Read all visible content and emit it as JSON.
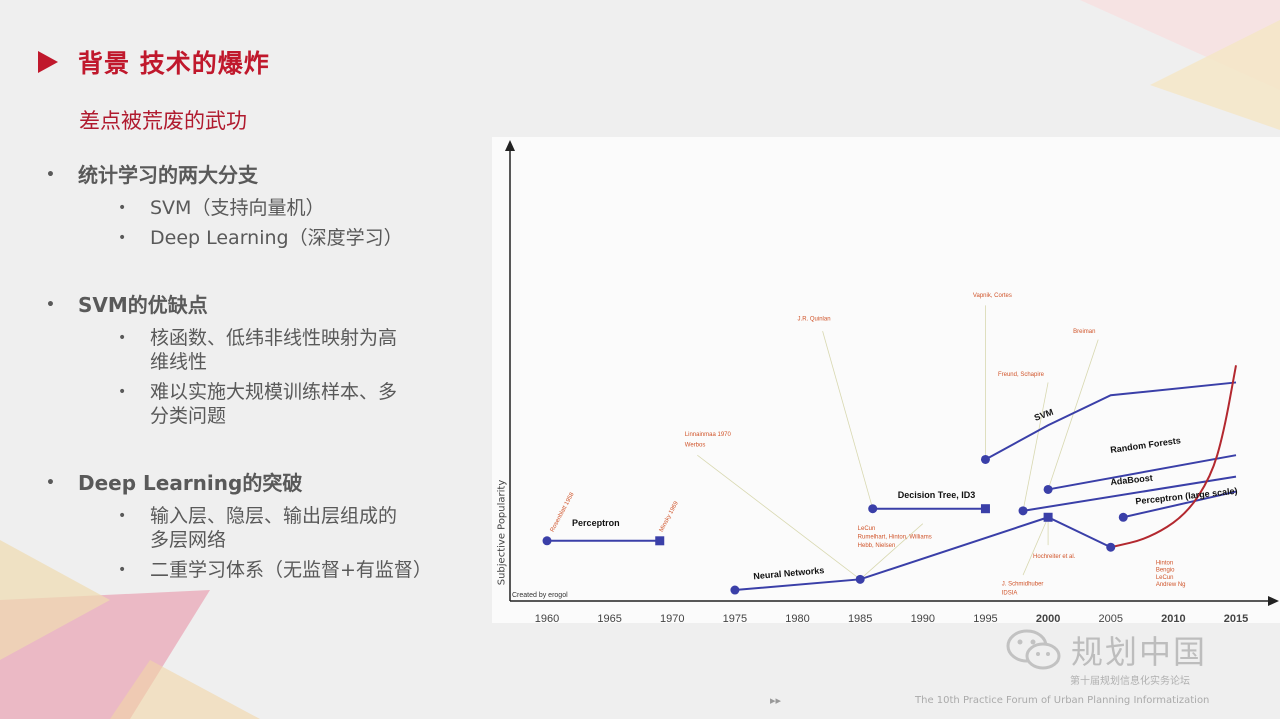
{
  "title": "背景    技术的爆炸",
  "subtitle": "差点被荒废的武功",
  "sections": [
    {
      "heading": "统计学习的两大分支",
      "items": [
        "SVM（支持向量机）",
        "Deep Learning（深度学习）"
      ]
    },
    {
      "heading": "SVM的优缺点",
      "items": [
        "核函数、低纬非线性映射为高维线性",
        "难以实施大规模训练样本、多分类问题"
      ]
    },
    {
      "heading": "Deep Learning的突破",
      "items": [
        "输入层、隐层、输出层组成的多层网络",
        "二重学习体系（无监督+有监督）"
      ]
    }
  ],
  "bullet_glyph": "•",
  "chart_data": {
    "type": "line",
    "ylabel": "Subjective Popularity",
    "xlabel": "",
    "x_ticks": [
      "1960",
      "1965",
      "1970",
      "1975",
      "1980",
      "1985",
      "1990",
      "1995",
      "2000",
      "2005",
      "2010",
      "2015"
    ],
    "xlim": [
      1960,
      2015
    ],
    "ylim": [
      0,
      10
    ],
    "credit": "Created by erogol",
    "series": [
      {
        "name": "Perceptron",
        "color": "#3a3fa8",
        "points": [
          [
            1960,
            1.5
          ],
          [
            1969,
            1.5
          ]
        ]
      },
      {
        "name": "Neural Networks",
        "color": "#3a3fa8",
        "points": [
          [
            1975,
            0.35
          ],
          [
            1985,
            0.6
          ],
          [
            2000,
            2.05
          ],
          [
            2005,
            1.35
          ]
        ]
      },
      {
        "name": "Decision Tree, ID3",
        "color": "#3a3fa8",
        "points": [
          [
            1986,
            2.25
          ],
          [
            1995,
            2.25
          ]
        ]
      },
      {
        "name": "SVM",
        "color": "#3a3fa8",
        "points": [
          [
            1995,
            3.4
          ],
          [
            2000,
            4.2
          ],
          [
            2005,
            4.9
          ],
          [
            2015,
            5.2
          ]
        ]
      },
      {
        "name": "Random Forests",
        "color": "#3a3fa8",
        "points": [
          [
            2000,
            2.7
          ],
          [
            2015,
            3.5
          ]
        ]
      },
      {
        "name": "AdaBoost",
        "color": "#3a3fa8",
        "points": [
          [
            1998,
            2.2
          ],
          [
            2015,
            3.0
          ]
        ]
      },
      {
        "name": "Perceptron (large scale)",
        "color": "#3a3fa8",
        "points": [
          [
            2006,
            2.05
          ],
          [
            2015,
            2.65
          ]
        ]
      },
      {
        "name": "Deep Learning",
        "color": "#b3282f",
        "points": [
          [
            2005,
            1.35
          ],
          [
            2008,
            1.55
          ],
          [
            2011,
            2.1
          ],
          [
            2013,
            3.0
          ],
          [
            2014,
            4.0
          ],
          [
            2015,
            5.6
          ]
        ]
      }
    ],
    "markers": [
      {
        "shape": "circle",
        "x": 1960,
        "y": 1.5
      },
      {
        "shape": "square",
        "x": 1969,
        "y": 1.5
      },
      {
        "shape": "circle",
        "x": 1975,
        "y": 0.35
      },
      {
        "shape": "circle",
        "x": 1985,
        "y": 0.6
      },
      {
        "shape": "circle",
        "x": 1986,
        "y": 2.25
      },
      {
        "shape": "square",
        "x": 1995,
        "y": 2.25
      },
      {
        "shape": "circle",
        "x": 1995,
        "y": 3.4
      },
      {
        "shape": "circle",
        "x": 1998,
        "y": 2.2
      },
      {
        "shape": "circle",
        "x": 2000,
        "y": 2.7
      },
      {
        "shape": "square",
        "x": 2000,
        "y": 2.05
      },
      {
        "shape": "circle",
        "x": 2005,
        "y": 1.35
      },
      {
        "shape": "circle",
        "x": 2006,
        "y": 2.05
      }
    ],
    "labels": [
      {
        "text": "Perceptron",
        "x": 1962,
        "y": 1.85,
        "color": "#111",
        "bold": true,
        "rot": 0
      },
      {
        "text": "Neural Networks",
        "x": 1976.5,
        "y": 0.6,
        "color": "#111",
        "bold": true,
        "rot": -5
      },
      {
        "text": "Decision Tree, ID3",
        "x": 1988,
        "y": 2.5,
        "color": "#111",
        "bold": true,
        "rot": 0
      },
      {
        "text": "SVM",
        "x": 1999,
        "y": 4.3,
        "color": "#111",
        "bold": true,
        "rot": -20
      },
      {
        "text": "Random Forests",
        "x": 2005,
        "y": 3.55,
        "color": "#111",
        "bold": true,
        "rot": -8
      },
      {
        "text": "AdaBoost",
        "x": 2005,
        "y": 2.8,
        "color": "#111",
        "bold": true,
        "rot": -6
      },
      {
        "text": "Perceptron (large scale)",
        "x": 2007,
        "y": 2.35,
        "color": "#111",
        "bold": true,
        "rot": -6
      },
      {
        "text": "Rosenblatt 1958",
        "x": 1960.5,
        "y": 1.7,
        "color": "#d0542a",
        "bold": false,
        "rot": -62
      },
      {
        "text": "Minsky 1969",
        "x": 1969.2,
        "y": 1.7,
        "color": "#d0542a",
        "bold": false,
        "rot": -62
      },
      {
        "text": "Linnainmaa 1970",
        "x": 1971,
        "y": 3.95,
        "color": "#d0542a",
        "bold": false,
        "rot": 0
      },
      {
        "text": "Werbos",
        "x": 1971,
        "y": 3.7,
        "color": "#d0542a",
        "bold": false,
        "rot": 0
      },
      {
        "text": "J.R. Quinlan",
        "x": 1980,
        "y": 6.65,
        "color": "#d0542a",
        "bold": false,
        "rot": 0
      },
      {
        "text": "Vapnik, Cortes",
        "x": 1994,
        "y": 7.2,
        "color": "#d0542a",
        "bold": false,
        "rot": 0
      },
      {
        "text": "Breiman",
        "x": 2002,
        "y": 6.35,
        "color": "#d0542a",
        "bold": false,
        "rot": 0
      },
      {
        "text": "Freund, Schapire",
        "x": 1996,
        "y": 5.35,
        "color": "#d0542a",
        "bold": false,
        "rot": 0
      },
      {
        "text": "LeCun",
        "x": 1984.8,
        "y": 1.75,
        "color": "#d0542a",
        "bold": false,
        "rot": 0
      },
      {
        "text": "Rumelhart, Hinton, Williams",
        "x": 1984.8,
        "y": 1.55,
        "color": "#d0542a",
        "bold": false,
        "rot": 0
      },
      {
        "text": "Hebb, Nielsen",
        "x": 1984.8,
        "y": 1.35,
        "color": "#d0542a",
        "bold": false,
        "rot": 0
      },
      {
        "text": "Hochreiter et al.",
        "x": 1998.8,
        "y": 1.1,
        "color": "#d0542a",
        "bold": false,
        "rot": 0
      },
      {
        "text": "J. Schmidhuber",
        "x": 1996.3,
        "y": 0.45,
        "color": "#d0542a",
        "bold": false,
        "rot": 0
      },
      {
        "text": "IDSIA",
        "x": 1996.3,
        "y": 0.25,
        "color": "#d0542a",
        "bold": false,
        "rot": 0
      },
      {
        "text": "Hinton",
        "x": 2008.6,
        "y": 0.95,
        "color": "#d0542a",
        "bold": false,
        "rot": 0
      },
      {
        "text": "Bengio",
        "x": 2008.6,
        "y": 0.78,
        "color": "#d0542a",
        "bold": false,
        "rot": 0
      },
      {
        "text": "LeCun",
        "x": 2008.6,
        "y": 0.61,
        "color": "#d0542a",
        "bold": false,
        "rot": 0
      },
      {
        "text": "Andrew Ng",
        "x": 2008.6,
        "y": 0.44,
        "color": "#d0542a",
        "bold": false,
        "rot": 0
      }
    ],
    "leaders": [
      [
        [
          1972,
          3.5
        ],
        [
          1985,
          0.6
        ]
      ],
      [
        [
          1982,
          6.4
        ],
        [
          1986,
          2.25
        ]
      ],
      [
        [
          1995,
          7.0
        ],
        [
          1995,
          3.4
        ]
      ],
      [
        [
          2000,
          5.2
        ],
        [
          1998,
          2.2
        ]
      ],
      [
        [
          2004,
          6.2
        ],
        [
          2000,
          2.7
        ]
      ],
      [
        [
          1990,
          1.9
        ],
        [
          1985,
          0.6
        ]
      ],
      [
        [
          2000,
          1.4
        ],
        [
          2000,
          2.05
        ]
      ],
      [
        [
          1998,
          0.7
        ],
        [
          2000,
          2.05
        ]
      ]
    ]
  },
  "watermark": "规划中国",
  "footer_tool": "▸▸",
  "footer_text": "The 10th Practice Forum of Urban Planning Informatization",
  "watermark_small": "第十届规划信息化实务论坛"
}
